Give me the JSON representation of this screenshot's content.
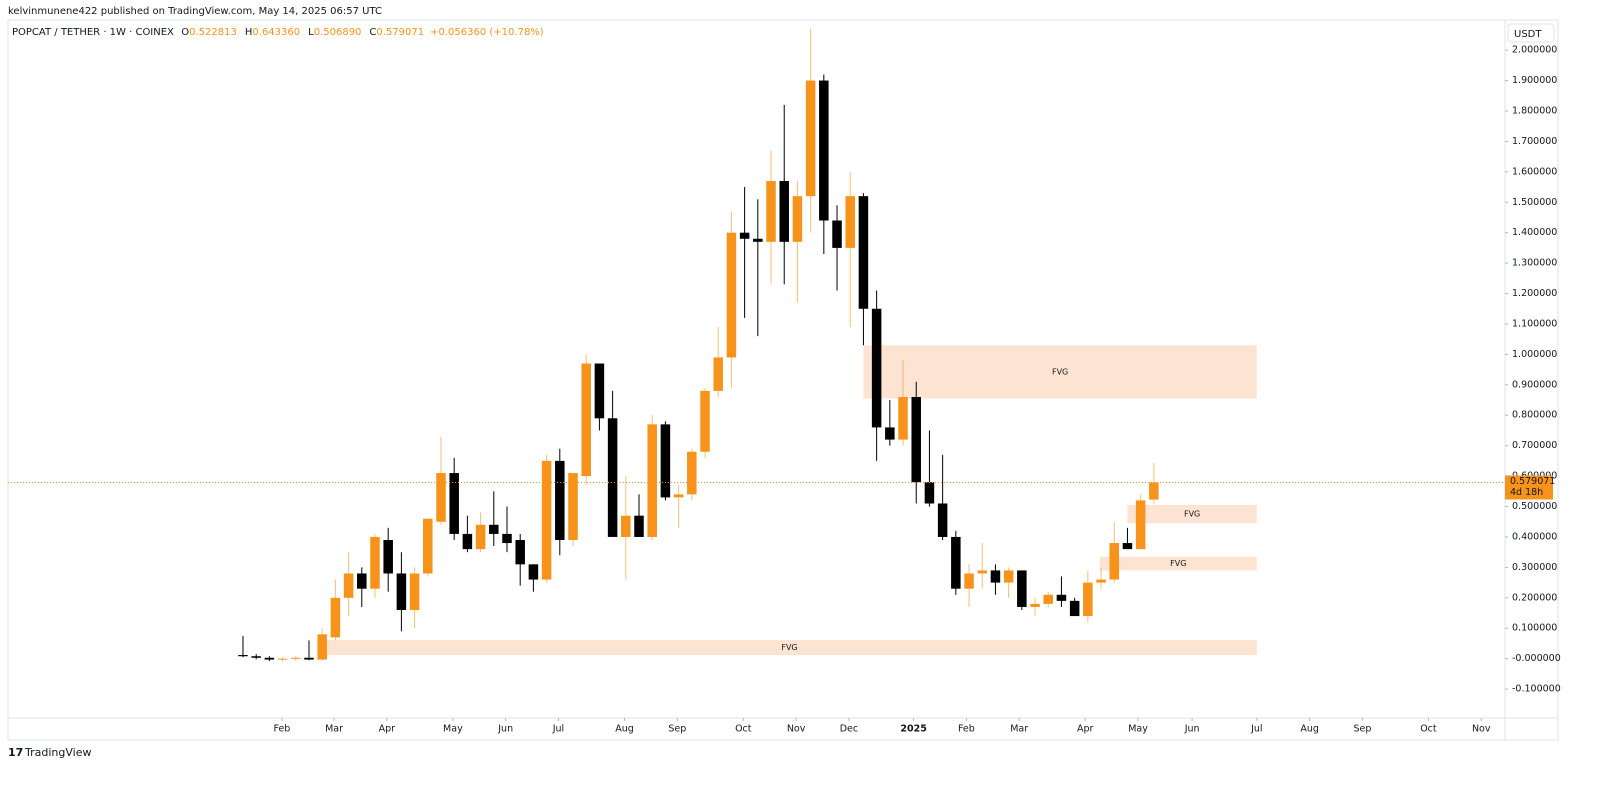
{
  "header": {
    "published": "kelvinmunene422 published on TradingView.com, May 14, 2025 06:57 UTC",
    "footer": "TradingView"
  },
  "chart_data": {
    "type": "candlestick",
    "legend": {
      "symbol": "POPCAT / TETHER · 1W · COINEX",
      "fields": [
        {
          "key": "O",
          "value": "0.522813"
        },
        {
          "key": "H",
          "value": "0.643360"
        },
        {
          "key": "L",
          "value": "0.506890"
        },
        {
          "key": "C",
          "value": "0.579071"
        }
      ],
      "change": "+0.056360 (+10.78%)"
    },
    "unit": "USDT",
    "up_color": "#f7931a",
    "down_color": "#000000",
    "x": [
      0,
      1,
      2,
      3,
      4,
      5,
      6,
      7,
      8,
      9,
      10,
      11,
      12,
      13,
      14,
      15,
      16,
      17,
      18,
      19,
      20,
      21,
      22,
      23,
      24,
      25,
      26,
      27,
      28,
      29,
      30,
      31,
      32,
      33,
      34,
      35,
      36,
      37,
      38,
      39,
      40,
      41,
      42,
      43,
      44,
      45,
      46,
      47,
      48,
      49,
      50,
      51,
      52,
      53,
      54,
      55,
      56,
      57,
      58,
      59,
      60,
      61,
      62,
      63,
      64,
      65,
      66,
      67,
      68,
      69
    ],
    "open": [
      0.012,
      0.008,
      0.003,
      -0.003,
      0.0,
      0.003,
      -0.003,
      0.07,
      0.2,
      0.28,
      0.23,
      0.39,
      0.28,
      0.16,
      0.28,
      0.45,
      0.61,
      0.41,
      0.36,
      0.44,
      0.41,
      0.39,
      0.31,
      0.26,
      0.65,
      0.39,
      0.6,
      0.97,
      0.79,
      0.4,
      0.47,
      0.4,
      0.77,
      0.53,
      0.54,
      0.68,
      0.88,
      0.99,
      1.4,
      1.38,
      1.37,
      1.57,
      1.37,
      1.52,
      1.9,
      1.44,
      1.35,
      1.52,
      1.15,
      0.76,
      0.72,
      0.86,
      0.58,
      0.51,
      0.4,
      0.23,
      0.28,
      0.29,
      0.25,
      0.29,
      0.17,
      0.18,
      0.21,
      0.19,
      0.14,
      0.25,
      0.26,
      0.38,
      0.36,
      0.522813
    ],
    "high": [
      0.075,
      0.015,
      0.008,
      0.005,
      0.008,
      0.06,
      0.1,
      0.26,
      0.35,
      0.3,
      0.41,
      0.43,
      0.35,
      0.3,
      0.46,
      0.73,
      0.66,
      0.47,
      0.48,
      0.55,
      0.5,
      0.41,
      0.31,
      0.67,
      0.69,
      0.61,
      1.0,
      0.97,
      0.88,
      0.6,
      0.54,
      0.8,
      0.78,
      0.57,
      0.69,
      0.89,
      1.09,
      1.47,
      1.55,
      1.51,
      1.67,
      1.82,
      1.57,
      2.07,
      1.92,
      1.49,
      1.6,
      1.53,
      1.21,
      0.85,
      0.98,
      0.91,
      0.75,
      0.67,
      0.42,
      0.31,
      0.38,
      0.31,
      0.3,
      0.29,
      0.2,
      0.22,
      0.27,
      0.2,
      0.29,
      0.3,
      0.45,
      0.43,
      0.54,
      0.64336
    ],
    "low": [
      0.005,
      -0.002,
      -0.008,
      -0.01,
      -0.008,
      -0.005,
      -0.005,
      0.06,
      0.14,
      0.17,
      0.2,
      0.22,
      0.09,
      0.1,
      0.27,
      0.44,
      0.39,
      0.35,
      0.35,
      0.37,
      0.35,
      0.24,
      0.22,
      0.25,
      0.34,
      0.37,
      0.57,
      0.75,
      0.41,
      0.26,
      0.41,
      0.39,
      0.52,
      0.43,
      0.52,
      0.66,
      0.86,
      0.89,
      1.12,
      1.06,
      1.23,
      1.23,
      1.17,
      1.4,
      1.33,
      1.21,
      1.09,
      1.03,
      0.65,
      0.7,
      0.7,
      0.51,
      0.5,
      0.39,
      0.21,
      0.17,
      0.23,
      0.21,
      0.2,
      0.16,
      0.14,
      0.17,
      0.17,
      0.14,
      0.12,
      0.23,
      0.25,
      0.36,
      0.36,
      0.50689
    ],
    "close": [
      0.008,
      0.003,
      -0.003,
      0.0,
      0.003,
      -0.003,
      0.08,
      0.2,
      0.28,
      0.23,
      0.4,
      0.28,
      0.16,
      0.28,
      0.46,
      0.61,
      0.41,
      0.36,
      0.44,
      0.41,
      0.38,
      0.31,
      0.26,
      0.65,
      0.39,
      0.61,
      0.97,
      0.79,
      0.4,
      0.47,
      0.4,
      0.77,
      0.53,
      0.54,
      0.68,
      0.88,
      0.99,
      1.4,
      1.38,
      1.37,
      1.57,
      1.37,
      1.52,
      1.9,
      1.44,
      1.35,
      1.52,
      1.15,
      0.76,
      0.72,
      0.86,
      0.58,
      0.51,
      0.4,
      0.23,
      0.28,
      0.29,
      0.25,
      0.29,
      0.17,
      0.18,
      0.21,
      0.19,
      0.14,
      0.25,
      0.26,
      0.38,
      0.36,
      0.52,
      0.579071
    ],
    "zones": [
      {
        "label": "FVG",
        "x0": 47.0,
        "x1": 76.8,
        "y0": 0.855,
        "y1": 1.03
      },
      {
        "label": "FVG",
        "x0": 67.0,
        "x1": 76.8,
        "y0": 0.445,
        "y1": 0.505
      },
      {
        "label": "FVG",
        "x0": 64.9,
        "x1": 76.8,
        "y0": 0.29,
        "y1": 0.335
      },
      {
        "label": "FVG",
        "x0": 6.0,
        "x1": 76.8,
        "y0": 0.012,
        "y1": 0.061
      }
    ],
    "zone_color": "#fde3d2",
    "zone_label_color": "#9c27b0",
    "last_price": 0.579071,
    "countdown": "4d 18h",
    "xlim": [
      -17.8,
      95.6
    ],
    "ylim": [
      -0.195,
      2.099
    ],
    "xticks": [
      {
        "value": 2.95,
        "label": "Feb"
      },
      {
        "value": 6.9,
        "label": "Mar"
      },
      {
        "value": 10.9,
        "label": "Apr"
      },
      {
        "value": 15.9,
        "label": "May"
      },
      {
        "value": 19.9,
        "label": "Jun"
      },
      {
        "value": 23.9,
        "label": "Jul"
      },
      {
        "value": 28.9,
        "label": "Aug"
      },
      {
        "value": 32.9,
        "label": "Sep"
      },
      {
        "value": 37.9,
        "label": "Oct"
      },
      {
        "value": 41.9,
        "label": "Nov"
      },
      {
        "value": 45.9,
        "label": "Dec"
      },
      {
        "value": 50.8,
        "label": "2025"
      },
      {
        "value": 54.8,
        "label": "Feb"
      },
      {
        "value": 58.8,
        "label": "Mar"
      },
      {
        "value": 63.8,
        "label": "Apr"
      },
      {
        "value": 67.8,
        "label": "May"
      },
      {
        "value": 71.9,
        "label": "Jun"
      },
      {
        "value": 76.8,
        "label": "Jul"
      },
      {
        "value": 80.8,
        "label": "Aug"
      },
      {
        "value": 84.8,
        "label": "Sep"
      },
      {
        "value": 89.8,
        "label": "Oct"
      },
      {
        "value": 93.8,
        "label": "Nov"
      }
    ],
    "yticks": [
      {
        "value": 2.0,
        "label": "2.000000"
      },
      {
        "value": 1.9,
        "label": "1.900000"
      },
      {
        "value": 1.8,
        "label": "1.800000"
      },
      {
        "value": 1.7,
        "label": "1.700000"
      },
      {
        "value": 1.6,
        "label": "1.600000"
      },
      {
        "value": 1.5,
        "label": "1.500000"
      },
      {
        "value": 1.4,
        "label": "1.400000"
      },
      {
        "value": 1.3,
        "label": "1.300000"
      },
      {
        "value": 1.2,
        "label": "1.200000"
      },
      {
        "value": 1.1,
        "label": "1.100000"
      },
      {
        "value": 1.0,
        "label": "1.000000"
      },
      {
        "value": 0.9,
        "label": "0.900000"
      },
      {
        "value": 0.8,
        "label": "0.800000"
      },
      {
        "value": 0.7,
        "label": "0.700000"
      },
      {
        "value": 0.6,
        "label": "0.600000"
      },
      {
        "value": 0.5,
        "label": "0.500000"
      },
      {
        "value": 0.4,
        "label": "0.400000"
      },
      {
        "value": 0.3,
        "label": "0.300000"
      },
      {
        "value": 0.2,
        "label": "0.200000"
      },
      {
        "value": 0.1,
        "label": "0.100000"
      },
      {
        "value": 0.0,
        "label": "-0.000000"
      },
      {
        "value": -0.1,
        "label": "-0.100000"
      }
    ],
    "grid": false
  }
}
